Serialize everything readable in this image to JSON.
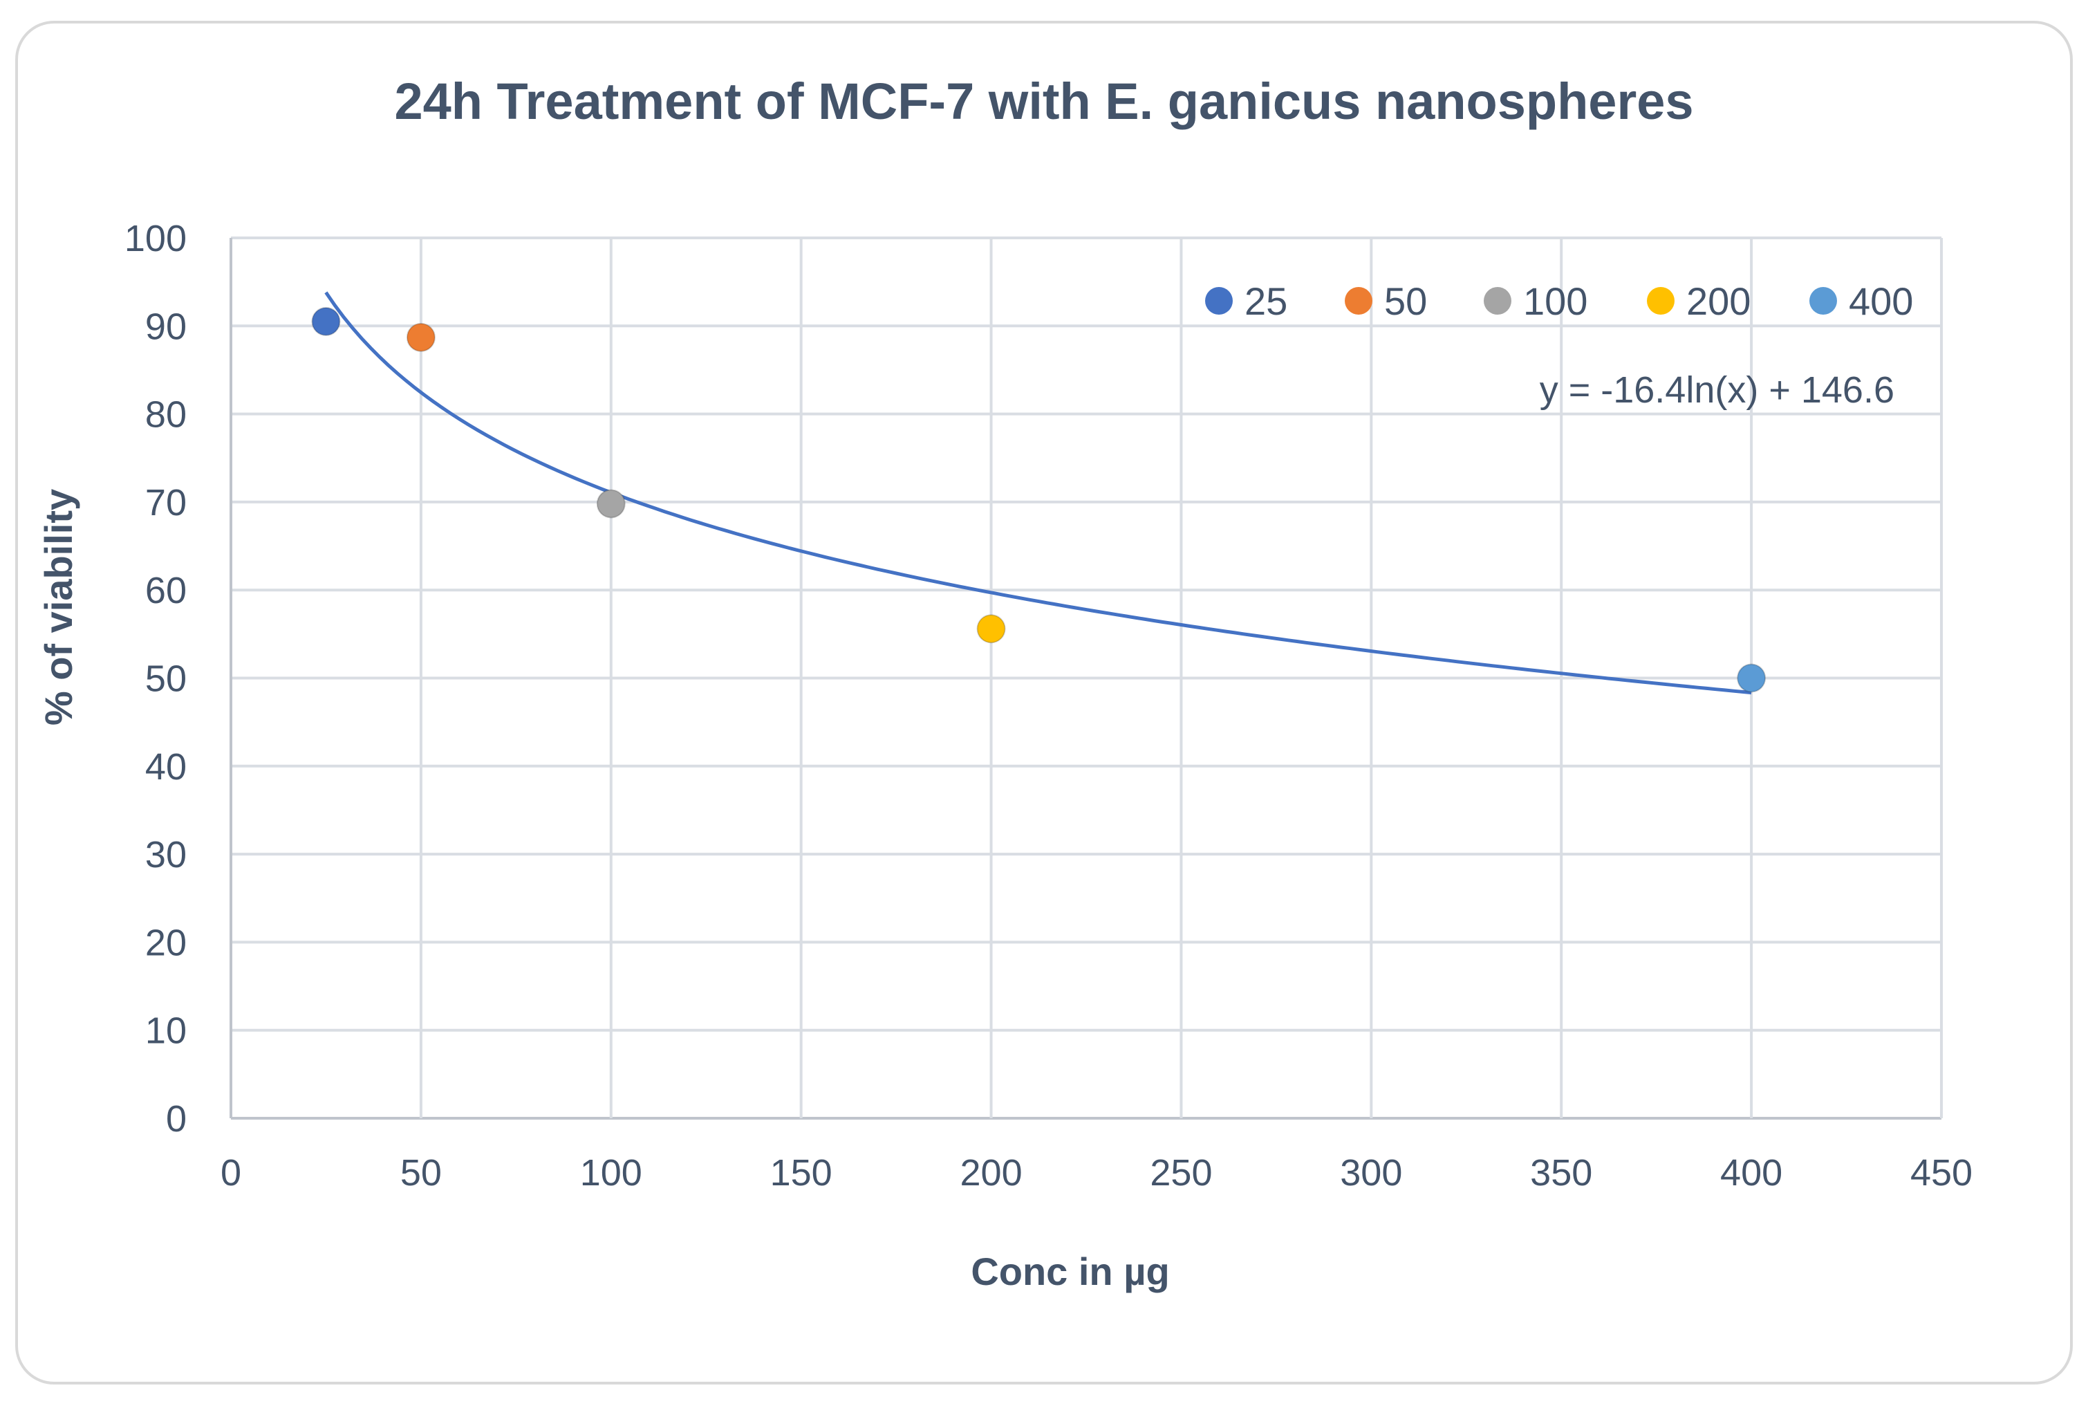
{
  "chart_data": {
    "type": "scatter",
    "title": "24h Treatment of MCF-7 with E. ganicus nanospheres",
    "xlabel": "Conc in µg",
    "ylabel": "% of viability",
    "xlim": [
      0,
      450
    ],
    "ylim": [
      0,
      100
    ],
    "x_ticks": [
      0,
      50,
      100,
      150,
      200,
      250,
      300,
      350,
      400,
      450
    ],
    "y_ticks": [
      0,
      10,
      20,
      30,
      40,
      50,
      60,
      70,
      80,
      90,
      100
    ],
    "grid": true,
    "legend_position": "top-right",
    "series": [
      {
        "name": "25",
        "x": 25,
        "y": 90.5,
        "color": "#4472c4"
      },
      {
        "name": "50",
        "x": 50,
        "y": 88.7,
        "color": "#ed7d31"
      },
      {
        "name": "100",
        "x": 100,
        "y": 69.8,
        "color": "#a5a5a5"
      },
      {
        "name": "200",
        "x": 200,
        "y": 55.6,
        "color": "#ffc000"
      },
      {
        "name": "400",
        "x": 400,
        "y": 50.0,
        "color": "#5b9bd5"
      }
    ],
    "trendline": {
      "type": "logarithmic",
      "a": -16.4,
      "b": 146.6,
      "x_range": [
        25,
        400
      ],
      "equation": "y = -16.4ln(x) + 146.6",
      "color": "#4472c4"
    }
  }
}
